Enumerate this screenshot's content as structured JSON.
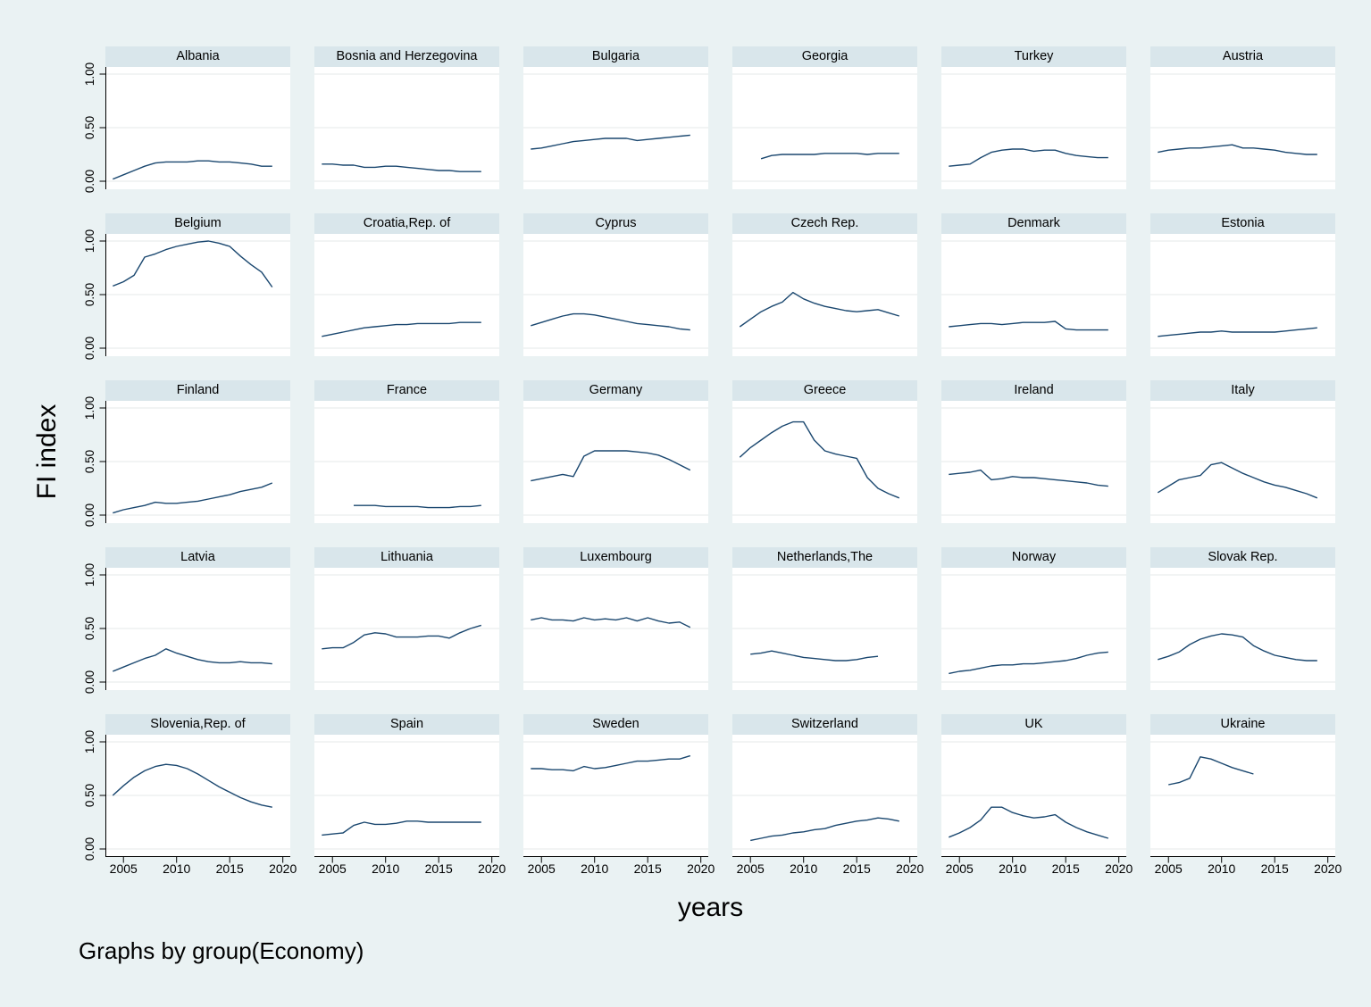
{
  "labels": {
    "ylabel": "FI index",
    "xlabel": "years",
    "note": "Graphs by group(Economy)"
  },
  "colors": {
    "background": "#eaf2f3",
    "panel_header": "#d9e6eb",
    "panel_bg": "#ffffff",
    "grid": "#e4e8e9",
    "line": "#1a476f",
    "axis": "#000000"
  },
  "chart_data": {
    "type": "line",
    "facet_by": "Economy",
    "layout": {
      "rows": 5,
      "cols": 6,
      "legend": "none",
      "grid": "horizontal gridlines at y ticks"
    },
    "xlabel": "years",
    "ylabel": "FI index",
    "note": "Graphs by group(Economy)",
    "xlim": [
      2003.3,
      2020.7
    ],
    "ylim": [
      0,
      1
    ],
    "x_ticks": [
      2005,
      2010,
      2015,
      2020
    ],
    "x_tick_labels": [
      "2005",
      "2010",
      "2015",
      "2020"
    ],
    "y_gridlines": [
      0,
      0.5,
      1
    ],
    "y_tick_labels": [
      "0.00",
      "0.50",
      "1.00"
    ],
    "x_step_years": 1,
    "panels": [
      {
        "title": "Albania",
        "start_year": 2004,
        "values": [
          0.02,
          0.06,
          0.1,
          0.14,
          0.17,
          0.18,
          0.18,
          0.18,
          0.19,
          0.19,
          0.18,
          0.18,
          0.17,
          0.16,
          0.14,
          0.14
        ]
      },
      {
        "title": "Bosnia and Herzegovina",
        "start_year": 2004,
        "values": [
          0.16,
          0.16,
          0.15,
          0.15,
          0.13,
          0.13,
          0.14,
          0.14,
          0.13,
          0.12,
          0.11,
          0.1,
          0.1,
          0.09,
          0.09,
          0.09
        ]
      },
      {
        "title": "Bulgaria",
        "start_year": 2004,
        "values": [
          0.3,
          0.31,
          0.33,
          0.35,
          0.37,
          0.38,
          0.39,
          0.4,
          0.4,
          0.4,
          0.38,
          0.39,
          0.4,
          0.41,
          0.42,
          0.43
        ]
      },
      {
        "title": "Georgia",
        "start_year": 2006,
        "values": [
          0.21,
          0.24,
          0.25,
          0.25,
          0.25,
          0.25,
          0.26,
          0.26,
          0.26,
          0.26,
          0.25,
          0.26,
          0.26,
          0.26
        ]
      },
      {
        "title": "Turkey",
        "start_year": 2004,
        "values": [
          0.14,
          0.15,
          0.16,
          0.22,
          0.27,
          0.29,
          0.3,
          0.3,
          0.28,
          0.29,
          0.29,
          0.26,
          0.24,
          0.23,
          0.22,
          0.22
        ]
      },
      {
        "title": "Austria",
        "start_year": 2004,
        "values": [
          0.27,
          0.29,
          0.3,
          0.31,
          0.31,
          0.32,
          0.33,
          0.34,
          0.31,
          0.31,
          0.3,
          0.29,
          0.27,
          0.26,
          0.25,
          0.25
        ]
      },
      {
        "title": "Belgium",
        "start_year": 2004,
        "values": [
          0.58,
          0.62,
          0.68,
          0.85,
          0.88,
          0.92,
          0.95,
          0.97,
          0.99,
          1.0,
          0.98,
          0.95,
          0.86,
          0.78,
          0.71,
          0.57
        ]
      },
      {
        "title": "Croatia,Rep. of",
        "start_year": 2004,
        "values": [
          0.11,
          0.13,
          0.15,
          0.17,
          0.19,
          0.2,
          0.21,
          0.22,
          0.22,
          0.23,
          0.23,
          0.23,
          0.23,
          0.24,
          0.24,
          0.24
        ]
      },
      {
        "title": "Cyprus",
        "start_year": 2004,
        "values": [
          0.21,
          0.24,
          0.27,
          0.3,
          0.32,
          0.32,
          0.31,
          0.29,
          0.27,
          0.25,
          0.23,
          0.22,
          0.21,
          0.2,
          0.18,
          0.17
        ]
      },
      {
        "title": "Czech Rep.",
        "start_year": 2004,
        "values": [
          0.2,
          0.27,
          0.34,
          0.39,
          0.43,
          0.52,
          0.46,
          0.42,
          0.39,
          0.37,
          0.35,
          0.34,
          0.35,
          0.36,
          0.33,
          0.3
        ]
      },
      {
        "title": "Denmark",
        "start_year": 2004,
        "values": [
          0.2,
          0.21,
          0.22,
          0.23,
          0.23,
          0.22,
          0.23,
          0.24,
          0.24,
          0.24,
          0.25,
          0.18,
          0.17,
          0.17,
          0.17,
          0.17
        ]
      },
      {
        "title": "Estonia",
        "start_year": 2004,
        "values": [
          0.11,
          0.12,
          0.13,
          0.14,
          0.15,
          0.15,
          0.16,
          0.15,
          0.15,
          0.15,
          0.15,
          0.15,
          0.16,
          0.17,
          0.18,
          0.19
        ]
      },
      {
        "title": "Finland",
        "start_year": 2004,
        "values": [
          0.02,
          0.05,
          0.07,
          0.09,
          0.12,
          0.11,
          0.11,
          0.12,
          0.13,
          0.15,
          0.17,
          0.19,
          0.22,
          0.24,
          0.26,
          0.3
        ]
      },
      {
        "title": "France",
        "start_year": 2007,
        "values": [
          0.09,
          0.09,
          0.09,
          0.08,
          0.08,
          0.08,
          0.08,
          0.07,
          0.07,
          0.07,
          0.08,
          0.08,
          0.09
        ]
      },
      {
        "title": "Germany",
        "start_year": 2004,
        "values": [
          0.32,
          0.34,
          0.36,
          0.38,
          0.36,
          0.55,
          0.6,
          0.6,
          0.6,
          0.6,
          0.59,
          0.58,
          0.56,
          0.52,
          0.47,
          0.42
        ]
      },
      {
        "title": "Greece",
        "start_year": 2004,
        "values": [
          0.54,
          0.63,
          0.7,
          0.77,
          0.83,
          0.87,
          0.87,
          0.7,
          0.6,
          0.57,
          0.55,
          0.53,
          0.35,
          0.25,
          0.2,
          0.16
        ]
      },
      {
        "title": "Ireland",
        "start_year": 2004,
        "values": [
          0.38,
          0.39,
          0.4,
          0.42,
          0.33,
          0.34,
          0.36,
          0.35,
          0.35,
          0.34,
          0.33,
          0.32,
          0.31,
          0.3,
          0.28,
          0.27
        ]
      },
      {
        "title": "Italy",
        "start_year": 2004,
        "values": [
          0.21,
          0.27,
          0.33,
          0.35,
          0.37,
          0.47,
          0.49,
          0.44,
          0.39,
          0.35,
          0.31,
          0.28,
          0.26,
          0.23,
          0.2,
          0.16
        ]
      },
      {
        "title": "Latvia",
        "start_year": 2004,
        "values": [
          0.1,
          0.14,
          0.18,
          0.22,
          0.25,
          0.31,
          0.27,
          0.24,
          0.21,
          0.19,
          0.18,
          0.18,
          0.19,
          0.18,
          0.18,
          0.17
        ]
      },
      {
        "title": "Lithuania",
        "start_year": 2004,
        "values": [
          0.31,
          0.32,
          0.32,
          0.37,
          0.44,
          0.46,
          0.45,
          0.42,
          0.42,
          0.42,
          0.43,
          0.43,
          0.41,
          0.46,
          0.5,
          0.53
        ]
      },
      {
        "title": "Luxembourg",
        "start_year": 2004,
        "values": [
          0.58,
          0.6,
          0.58,
          0.58,
          0.57,
          0.6,
          0.58,
          0.59,
          0.58,
          0.6,
          0.57,
          0.6,
          0.57,
          0.55,
          0.56,
          0.51
        ]
      },
      {
        "title": "Netherlands,The",
        "start_year": 2005,
        "values": [
          0.26,
          0.27,
          0.29,
          0.27,
          0.25,
          0.23,
          0.22,
          0.21,
          0.2,
          0.2,
          0.21,
          0.23,
          0.24
        ]
      },
      {
        "title": "Norway",
        "start_year": 2004,
        "values": [
          0.08,
          0.1,
          0.11,
          0.13,
          0.15,
          0.16,
          0.16,
          0.17,
          0.17,
          0.18,
          0.19,
          0.2,
          0.22,
          0.25,
          0.27,
          0.28
        ]
      },
      {
        "title": "Slovak Rep.",
        "start_year": 2004,
        "values": [
          0.21,
          0.24,
          0.28,
          0.35,
          0.4,
          0.43,
          0.45,
          0.44,
          0.42,
          0.34,
          0.29,
          0.25,
          0.23,
          0.21,
          0.2,
          0.2
        ]
      },
      {
        "title": "Slovenia,Rep. of",
        "start_year": 2004,
        "values": [
          0.5,
          0.59,
          0.67,
          0.73,
          0.77,
          0.79,
          0.78,
          0.75,
          0.7,
          0.64,
          0.58,
          0.53,
          0.48,
          0.44,
          0.41,
          0.39
        ]
      },
      {
        "title": "Spain",
        "start_year": 2004,
        "values": [
          0.13,
          0.14,
          0.15,
          0.22,
          0.25,
          0.23,
          0.23,
          0.24,
          0.26,
          0.26,
          0.25,
          0.25,
          0.25,
          0.25,
          0.25,
          0.25
        ]
      },
      {
        "title": "Sweden",
        "start_year": 2004,
        "values": [
          0.75,
          0.75,
          0.74,
          0.74,
          0.73,
          0.77,
          0.75,
          0.76,
          0.78,
          0.8,
          0.82,
          0.82,
          0.83,
          0.84,
          0.84,
          0.87
        ]
      },
      {
        "title": "Switzerland",
        "start_year": 2005,
        "values": [
          0.08,
          0.1,
          0.12,
          0.13,
          0.15,
          0.16,
          0.18,
          0.19,
          0.22,
          0.24,
          0.26,
          0.27,
          0.29,
          0.28,
          0.26
        ]
      },
      {
        "title": "UK",
        "start_year": 2004,
        "values": [
          0.11,
          0.15,
          0.2,
          0.27,
          0.39,
          0.39,
          0.34,
          0.31,
          0.29,
          0.3,
          0.32,
          0.25,
          0.2,
          0.16,
          0.13,
          0.1
        ]
      },
      {
        "title": "Ukraine",
        "start_year": 2005,
        "values": [
          0.6,
          0.62,
          0.66,
          0.86,
          0.84,
          0.8,
          0.76,
          0.73,
          0.7
        ]
      }
    ]
  }
}
